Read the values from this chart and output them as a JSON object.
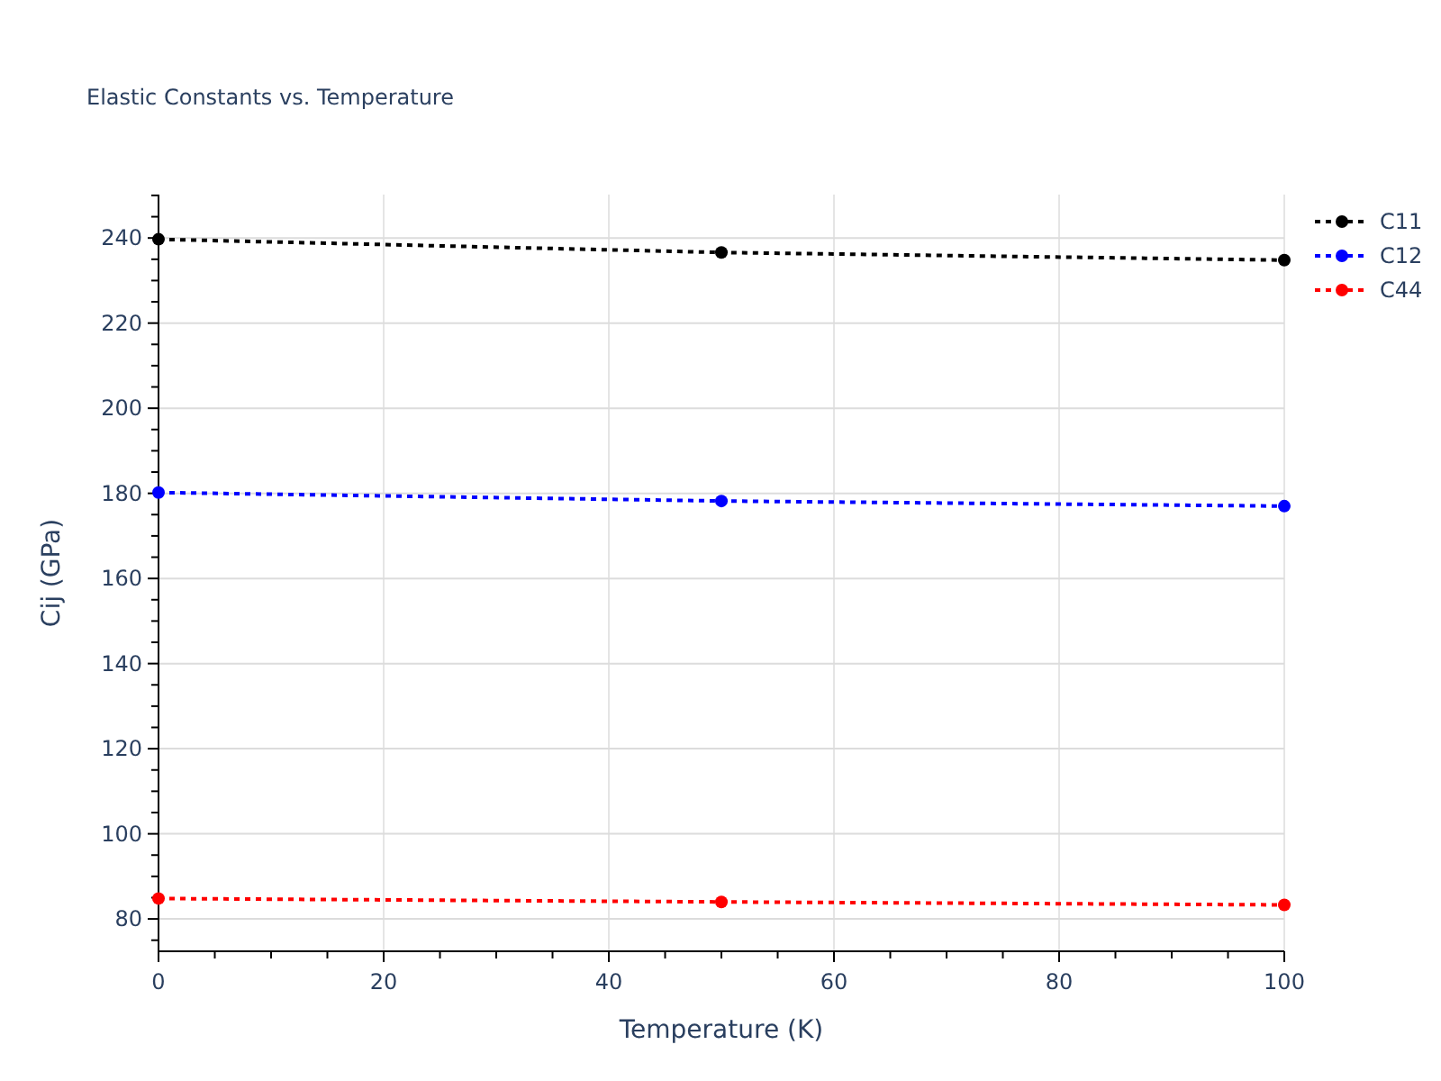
{
  "chart_data": {
    "type": "line",
    "title": "Elastic Constants vs. Temperature",
    "xlabel": "Temperature (K)",
    "ylabel": "Cij (GPa)",
    "x": [
      0,
      50,
      100
    ],
    "series": [
      {
        "name": "C11",
        "color": "#000000",
        "values": [
          239.7,
          236.6,
          234.8
        ]
      },
      {
        "name": "C12",
        "color": "#0000ff",
        "values": [
          180.2,
          178.2,
          177.0
        ]
      },
      {
        "name": "C44",
        "color": "#ff0000",
        "values": [
          84.8,
          84.0,
          83.3
        ]
      }
    ],
    "xlim": [
      0,
      100
    ],
    "xticks": [
      0,
      {
        "value": 5,
        "label": null
      },
      {
        "value": 10,
        "label": null
      },
      {
        "value": 15,
        "label": null
      },
      20,
      {
        "value": 25,
        "label": null
      },
      {
        "value": 30,
        "label": null
      },
      {
        "value": 35,
        "label": null
      },
      40,
      {
        "value": 45,
        "label": null
      },
      {
        "value": 50,
        "label": null
      },
      {
        "value": 55,
        "label": null
      },
      60,
      {
        "value": 65,
        "label": null
      },
      {
        "value": 70,
        "label": null
      },
      {
        "value": 75,
        "label": null
      },
      80,
      {
        "value": 85,
        "label": null
      },
      {
        "value": 90,
        "label": null
      },
      {
        "value": 95,
        "label": null
      },
      100
    ],
    "ylim": [
      72.4,
      250.2
    ],
    "yticks": [
      {
        "value": 75,
        "label": null
      },
      80,
      {
        "value": 85,
        "label": null
      },
      {
        "value": 90,
        "label": null
      },
      {
        "value": 95,
        "label": null
      },
      100,
      {
        "value": 105,
        "label": null
      },
      {
        "value": 110,
        "label": null
      },
      {
        "value": 115,
        "label": null
      },
      120,
      {
        "value": 125,
        "label": null
      },
      {
        "value": 130,
        "label": null
      },
      {
        "value": 135,
        "label": null
      },
      140,
      {
        "value": 145,
        "label": null
      },
      {
        "value": 150,
        "label": null
      },
      {
        "value": 155,
        "label": null
      },
      160,
      {
        "value": 165,
        "label": null
      },
      {
        "value": 170,
        "label": null
      },
      {
        "value": 175,
        "label": null
      },
      180,
      {
        "value": 185,
        "label": null
      },
      {
        "value": 190,
        "label": null
      },
      {
        "value": 195,
        "label": null
      },
      200,
      {
        "value": 205,
        "label": null
      },
      {
        "value": 210,
        "label": null
      },
      {
        "value": 215,
        "label": null
      },
      220,
      {
        "value": 225,
        "label": null
      },
      {
        "value": 230,
        "label": null
      },
      {
        "value": 235,
        "label": null
      },
      240,
      {
        "value": 245,
        "label": null
      },
      {
        "value": 250,
        "label": null
      }
    ],
    "grid": true,
    "legend": "top right",
    "marker": "circle",
    "line_style": "dotted"
  }
}
